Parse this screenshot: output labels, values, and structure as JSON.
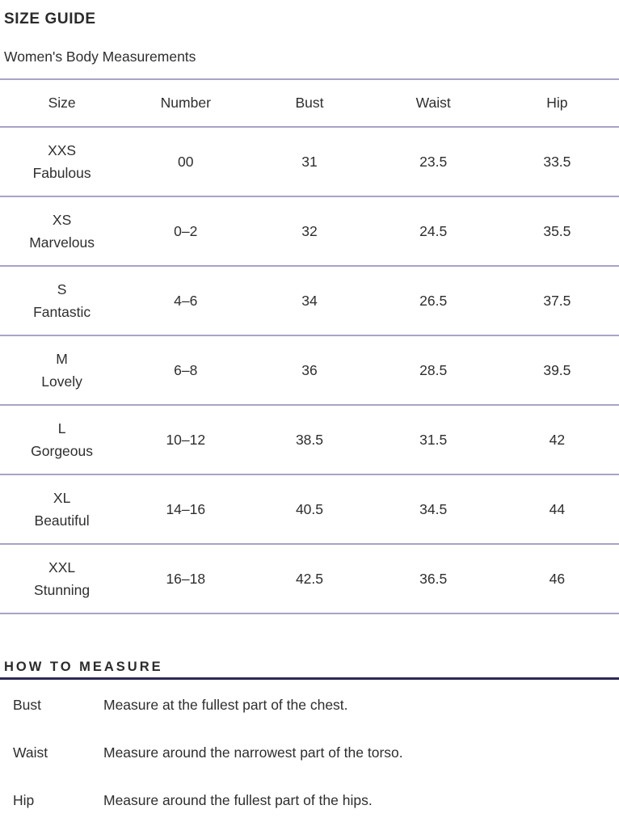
{
  "page": {
    "title": "SIZE GUIDE",
    "subtitle": "Women's Body Measurements"
  },
  "size_table": {
    "columns": [
      "Size",
      "Number",
      "Bust",
      "Waist",
      "Hip"
    ],
    "rows": [
      {
        "size": "XXS",
        "nickname": "Fabulous",
        "number": "00",
        "bust": "31",
        "waist": "23.5",
        "hip": "33.5"
      },
      {
        "size": "XS",
        "nickname": "Marvelous",
        "number": "0–2",
        "bust": "32",
        "waist": "24.5",
        "hip": "35.5"
      },
      {
        "size": "S",
        "nickname": "Fantastic",
        "number": "4–6",
        "bust": "34",
        "waist": "26.5",
        "hip": "37.5"
      },
      {
        "size": "M",
        "nickname": "Lovely",
        "number": "6–8",
        "bust": "36",
        "waist": "28.5",
        "hip": "39.5"
      },
      {
        "size": "L",
        "nickname": "Gorgeous",
        "number": "10–12",
        "bust": "38.5",
        "waist": "31.5",
        "hip": "42"
      },
      {
        "size": "XL",
        "nickname": "Beautiful",
        "number": "14–16",
        "bust": "40.5",
        "waist": "34.5",
        "hip": "44"
      },
      {
        "size": "XXL",
        "nickname": "Stunning",
        "number": "16–18",
        "bust": "42.5",
        "waist": "36.5",
        "hip": "46"
      }
    ]
  },
  "how_to_measure": {
    "heading": "HOW TO MEASURE",
    "items": [
      {
        "label": "Bust",
        "description": "Measure at the fullest part of the chest."
      },
      {
        "label": "Waist",
        "description": "Measure around the narrowest part of the torso."
      },
      {
        "label": "Hip",
        "description": "Measure around the fullest part of the hips."
      }
    ]
  },
  "colors": {
    "text": "#2e2e2e",
    "table_line": "#a8a3c7",
    "heading_rule": "#2d2952"
  }
}
